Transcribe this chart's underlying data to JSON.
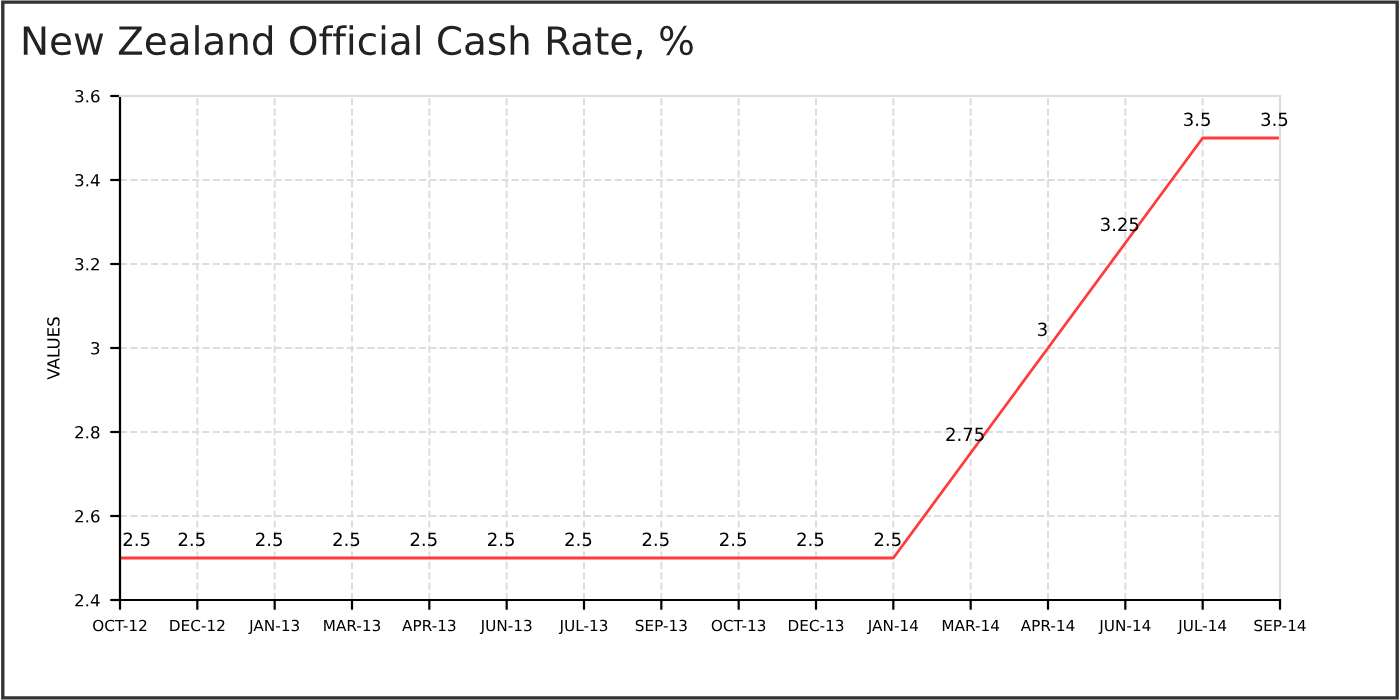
{
  "chart_data": {
    "type": "line",
    "title": "New Zealand Official Cash Rate, %",
    "ylabel": "VALUES",
    "categories": [
      "OCT-12",
      "DEC-12",
      "JAN-13",
      "MAR-13",
      "APR-13",
      "JUN-13",
      "JUL-13",
      "SEP-13",
      "OCT-13",
      "DEC-13",
      "JAN-14",
      "MAR-14",
      "APR-14",
      "JUN-14",
      "JUL-14",
      "SEP-14"
    ],
    "series": [
      {
        "color": "#ff3b3b",
        "values": [
          2.5,
          2.5,
          2.5,
          2.5,
          2.5,
          2.5,
          2.5,
          2.5,
          2.5,
          2.5,
          2.5,
          2.75,
          3,
          3.25,
          3.5,
          3.5
        ]
      }
    ],
    "ylim": [
      2.4,
      3.6
    ],
    "yticks": [
      2.4,
      2.6,
      2.8,
      3,
      3.2,
      3.4,
      3.6
    ],
    "grid": true,
    "data_labels": true,
    "marker": "none",
    "line_style": "solid"
  }
}
